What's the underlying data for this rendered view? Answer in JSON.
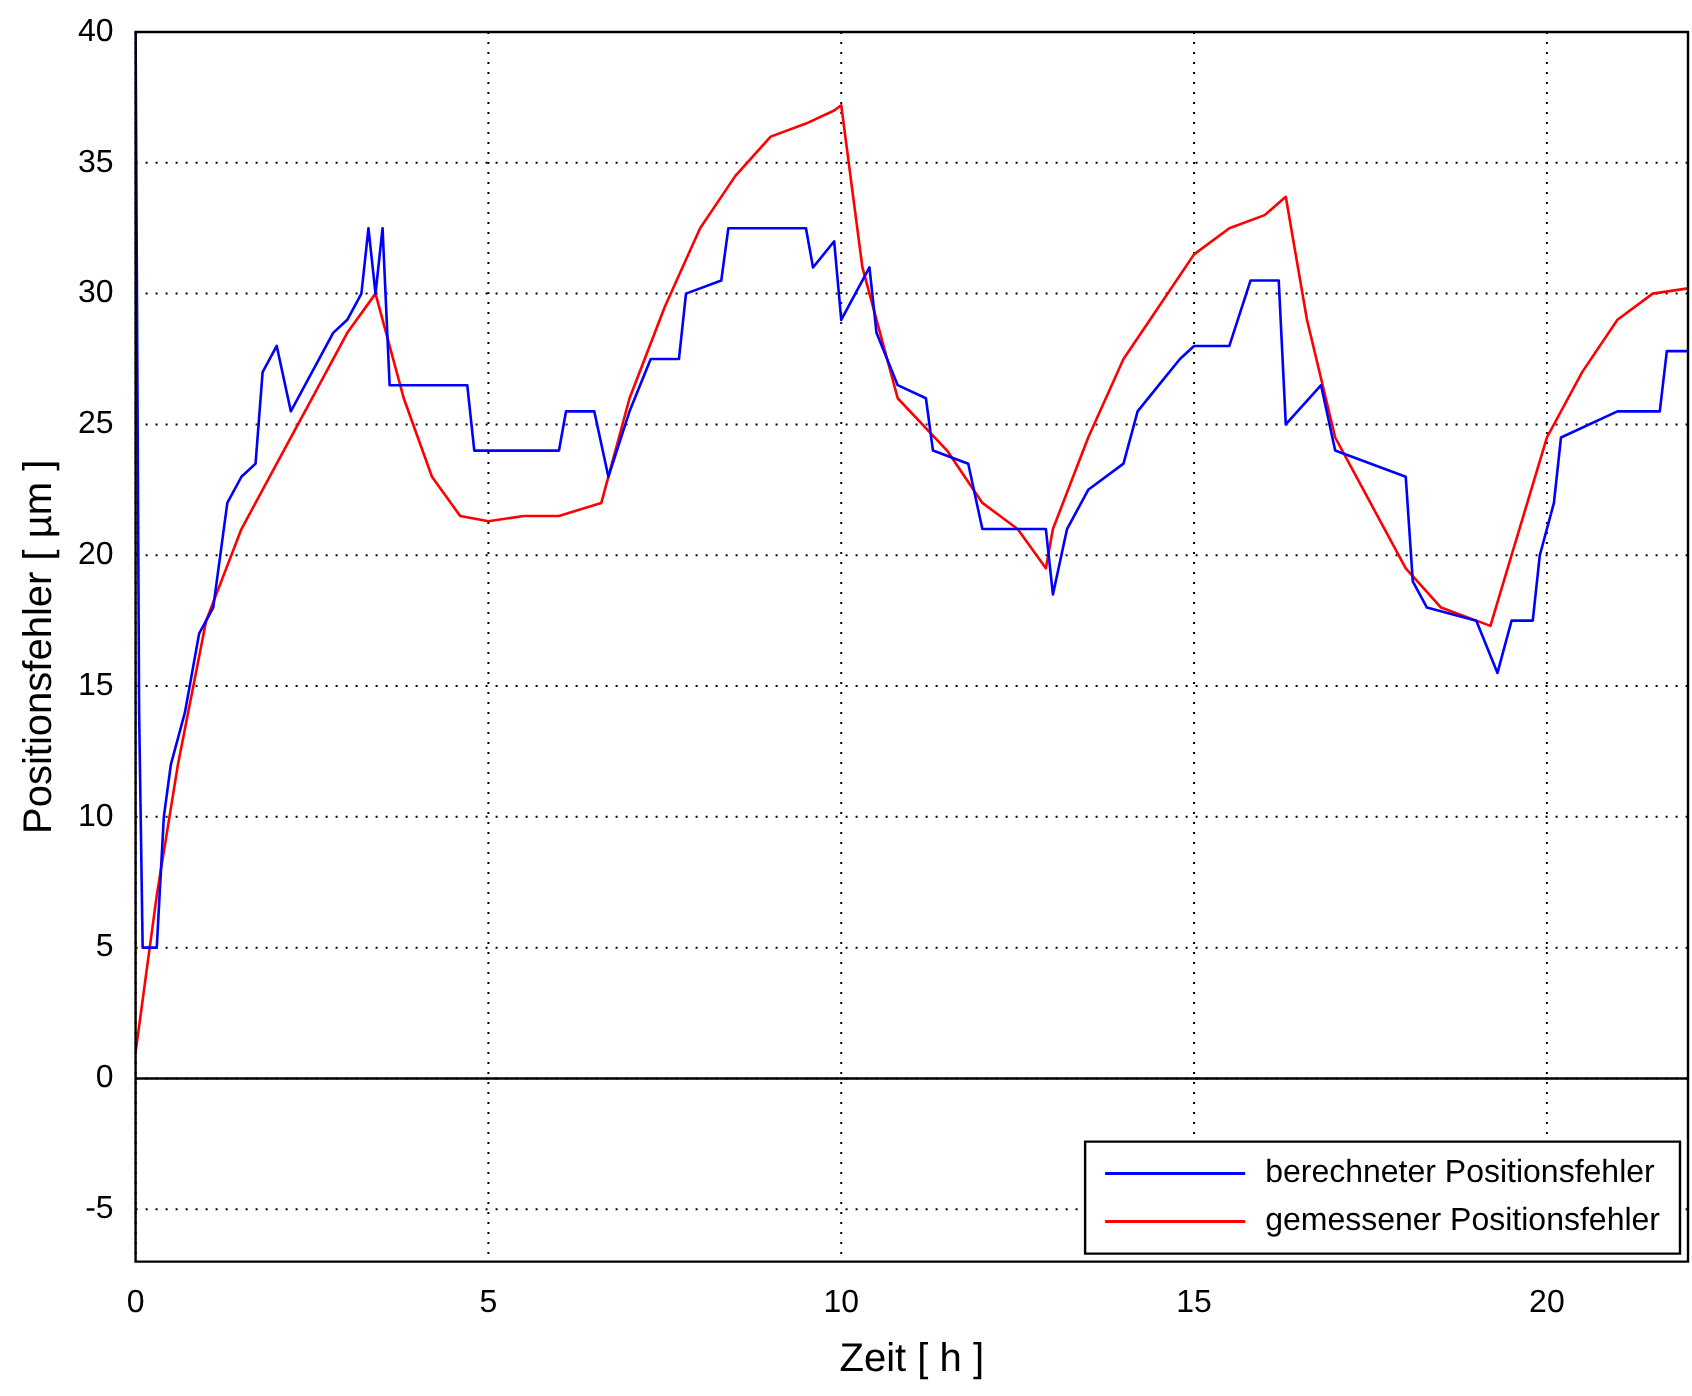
{
  "chart_data": {
    "type": "line",
    "xlabel": "Zeit [ h ]",
    "ylabel": "Positionsfehler [ µm ]",
    "xlim": [
      0,
      22
    ],
    "ylim": [
      -7,
      40
    ],
    "xticks": [
      0,
      5,
      10,
      15,
      20
    ],
    "yticks": [
      -5,
      0,
      5,
      10,
      15,
      20,
      25,
      30,
      35,
      40
    ],
    "grid": true,
    "legend": "bottom right",
    "marker": "none",
    "line_style": "solid",
    "ref_lines": [
      {
        "axis": "y",
        "value": 0,
        "color": "#000000",
        "line_style": "solid"
      }
    ],
    "series": [
      {
        "name": "berechneter Positionsfehler",
        "color": "#0000ff",
        "x": [
          0,
          0.05,
          0.1,
          0.3,
          0.4,
          0.5,
          0.7,
          0.9,
          1.1,
          1.3,
          1.5,
          1.7,
          1.8,
          2.0,
          2.2,
          2.5,
          2.8,
          3.0,
          3.2,
          3.3,
          3.4,
          3.5,
          3.6,
          4.0,
          4.7,
          4.8,
          6.0,
          6.1,
          6.5,
          6.7,
          7.0,
          7.3,
          7.7,
          7.8,
          8.3,
          8.4,
          9.5,
          9.6,
          9.9,
          10.0,
          10.4,
          10.5,
          10.8,
          11.2,
          11.3,
          11.8,
          12.0,
          12.5,
          12.9,
          13.0,
          13.2,
          13.5,
          14.0,
          14.2,
          14.5,
          14.8,
          15.0,
          15.5,
          15.8,
          16.2,
          16.3,
          16.8,
          17.0,
          18.0,
          18.1,
          18.3,
          19.0,
          19.3,
          19.5,
          19.8,
          19.9,
          20.1,
          20.2,
          21.0,
          21.6,
          21.7,
          22.0
        ],
        "values": [
          40,
          14,
          5,
          5,
          10,
          12,
          14,
          17,
          18,
          22,
          23,
          23.5,
          27,
          28,
          25.5,
          27,
          28.5,
          29,
          30,
          32.5,
          30,
          32.5,
          26.5,
          26.5,
          26.5,
          24,
          24,
          25.5,
          25.5,
          23,
          25.5,
          27.5,
          27.5,
          30,
          30.5,
          32.5,
          32.5,
          31,
          32,
          29,
          31,
          28.5,
          26.5,
          26,
          24,
          23.5,
          21,
          21,
          21,
          18.5,
          21,
          22.5,
          23.5,
          25.5,
          26.5,
          27.5,
          28,
          28,
          30.5,
          30.5,
          25,
          26.5,
          24,
          23,
          19,
          18,
          17.5,
          15.5,
          17.5,
          17.5,
          20,
          22,
          24.5,
          25.5,
          25.5,
          27.8,
          27.8
        ]
      },
      {
        "name": "gemessener Positionsfehler",
        "color": "#ff0000",
        "x": [
          0,
          0.3,
          0.6,
          1,
          1.5,
          2,
          2.5,
          3,
          3.4,
          3.8,
          4.2,
          4.6,
          5,
          5.5,
          6,
          6.6,
          7,
          7.5,
          8,
          8.5,
          9,
          9.5,
          9.9,
          10,
          10.3,
          10.8,
          11.5,
          12,
          12.5,
          12.9,
          13,
          13.5,
          14,
          14.5,
          15,
          15.5,
          16,
          16.3,
          16.6,
          17,
          17.5,
          18,
          18.5,
          19,
          19.2,
          19.5,
          20,
          20.5,
          21,
          21.5,
          22
        ],
        "values": [
          1,
          7,
          12,
          17.5,
          21,
          23.5,
          26,
          28.5,
          30,
          26,
          23,
          21.5,
          21.3,
          21.5,
          21.5,
          22,
          26,
          29.5,
          32.5,
          34.5,
          36,
          36.5,
          37,
          37.2,
          31,
          26,
          24,
          22,
          21,
          19.5,
          21,
          24.5,
          27.5,
          29.5,
          31.5,
          32.5,
          33,
          33.7,
          29,
          24.5,
          22,
          19.5,
          18,
          17.5,
          17.3,
          20,
          24.5,
          27,
          29,
          30,
          30.2
        ]
      }
    ]
  }
}
